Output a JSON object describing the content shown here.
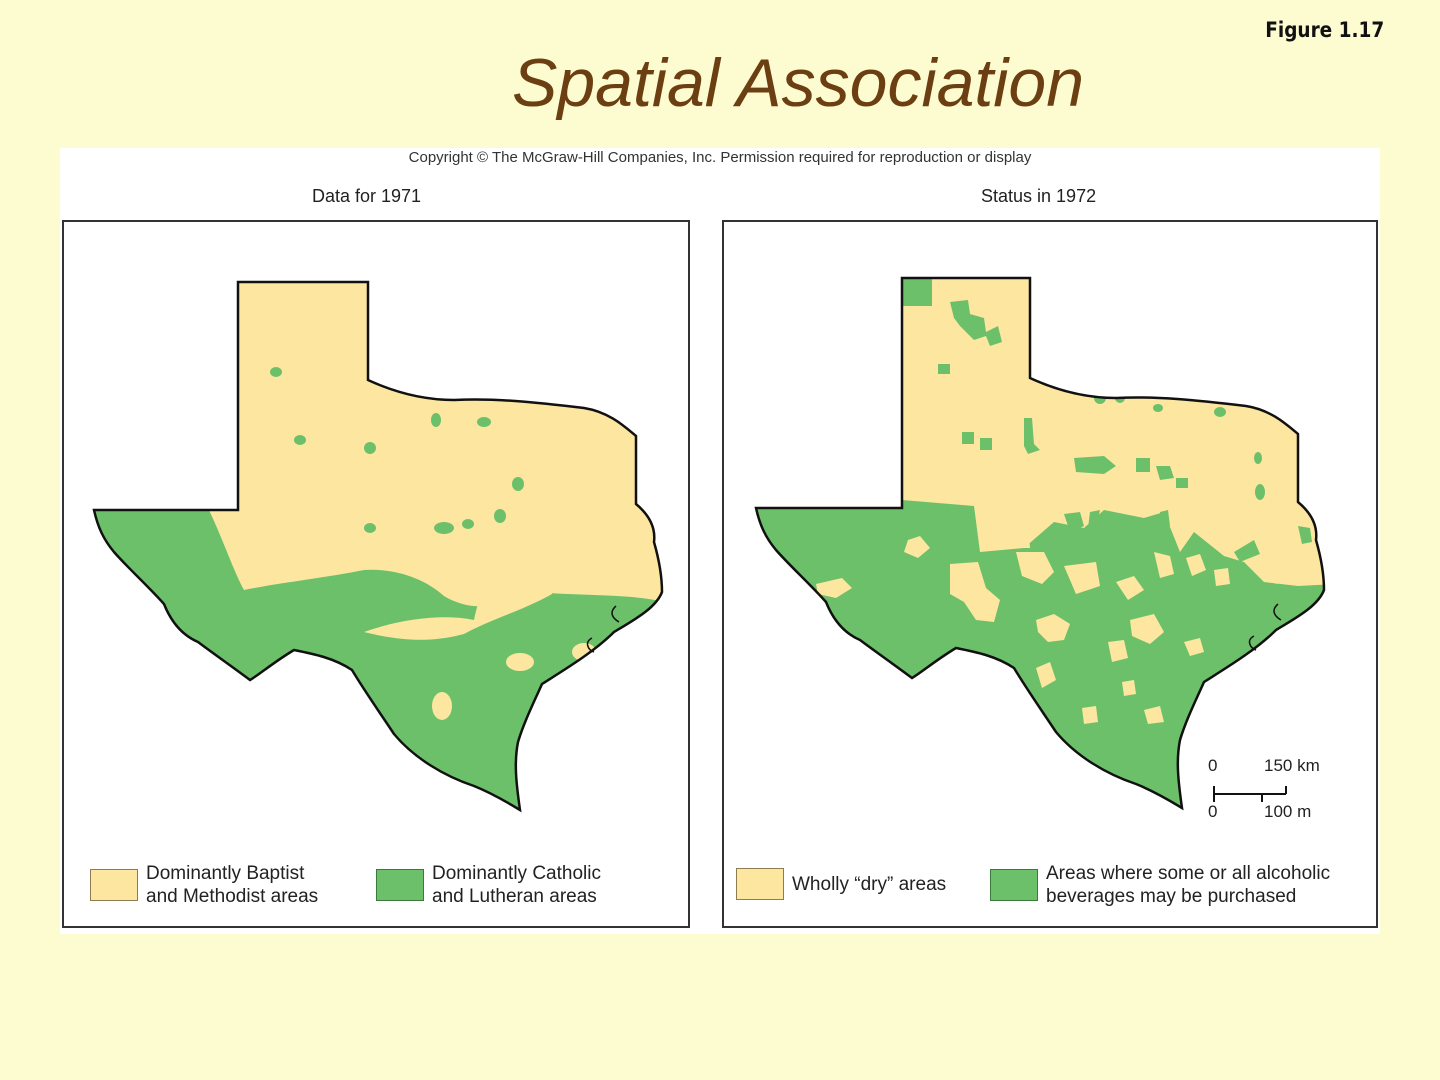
{
  "figure_label": "Figure 1.17",
  "title": "Spatial Association",
  "copyright": "Copyright © The McGraw-Hill Companies, Inc. Permission required for reproduction or display",
  "left_map": {
    "subtitle": "Data for 1971",
    "legend": [
      {
        "line1": "Dominantly Baptist",
        "line2": "and Methodist areas",
        "color": "#fde6a0"
      },
      {
        "line1": "Dominantly Catholic",
        "line2": "and Lutheran areas",
        "color": "#6cc06a"
      }
    ]
  },
  "right_map": {
    "subtitle": "Status in 1972",
    "legend": [
      {
        "line1": "Wholly “dry”  areas",
        "line2": "",
        "color": "#fde6a0"
      },
      {
        "line1": "Areas where some or all alcoholic",
        "line2": "beverages may be purchased",
        "color": "#6cc06a"
      }
    ],
    "scale": {
      "top_zero": "0",
      "top_value": "150 km",
      "bottom_zero": "0",
      "bottom_value": "100 m"
    }
  },
  "colors": {
    "background": "#fdfbd0",
    "tan": "#fde6a0",
    "green": "#6cc06a",
    "title": "#6b3f12"
  }
}
